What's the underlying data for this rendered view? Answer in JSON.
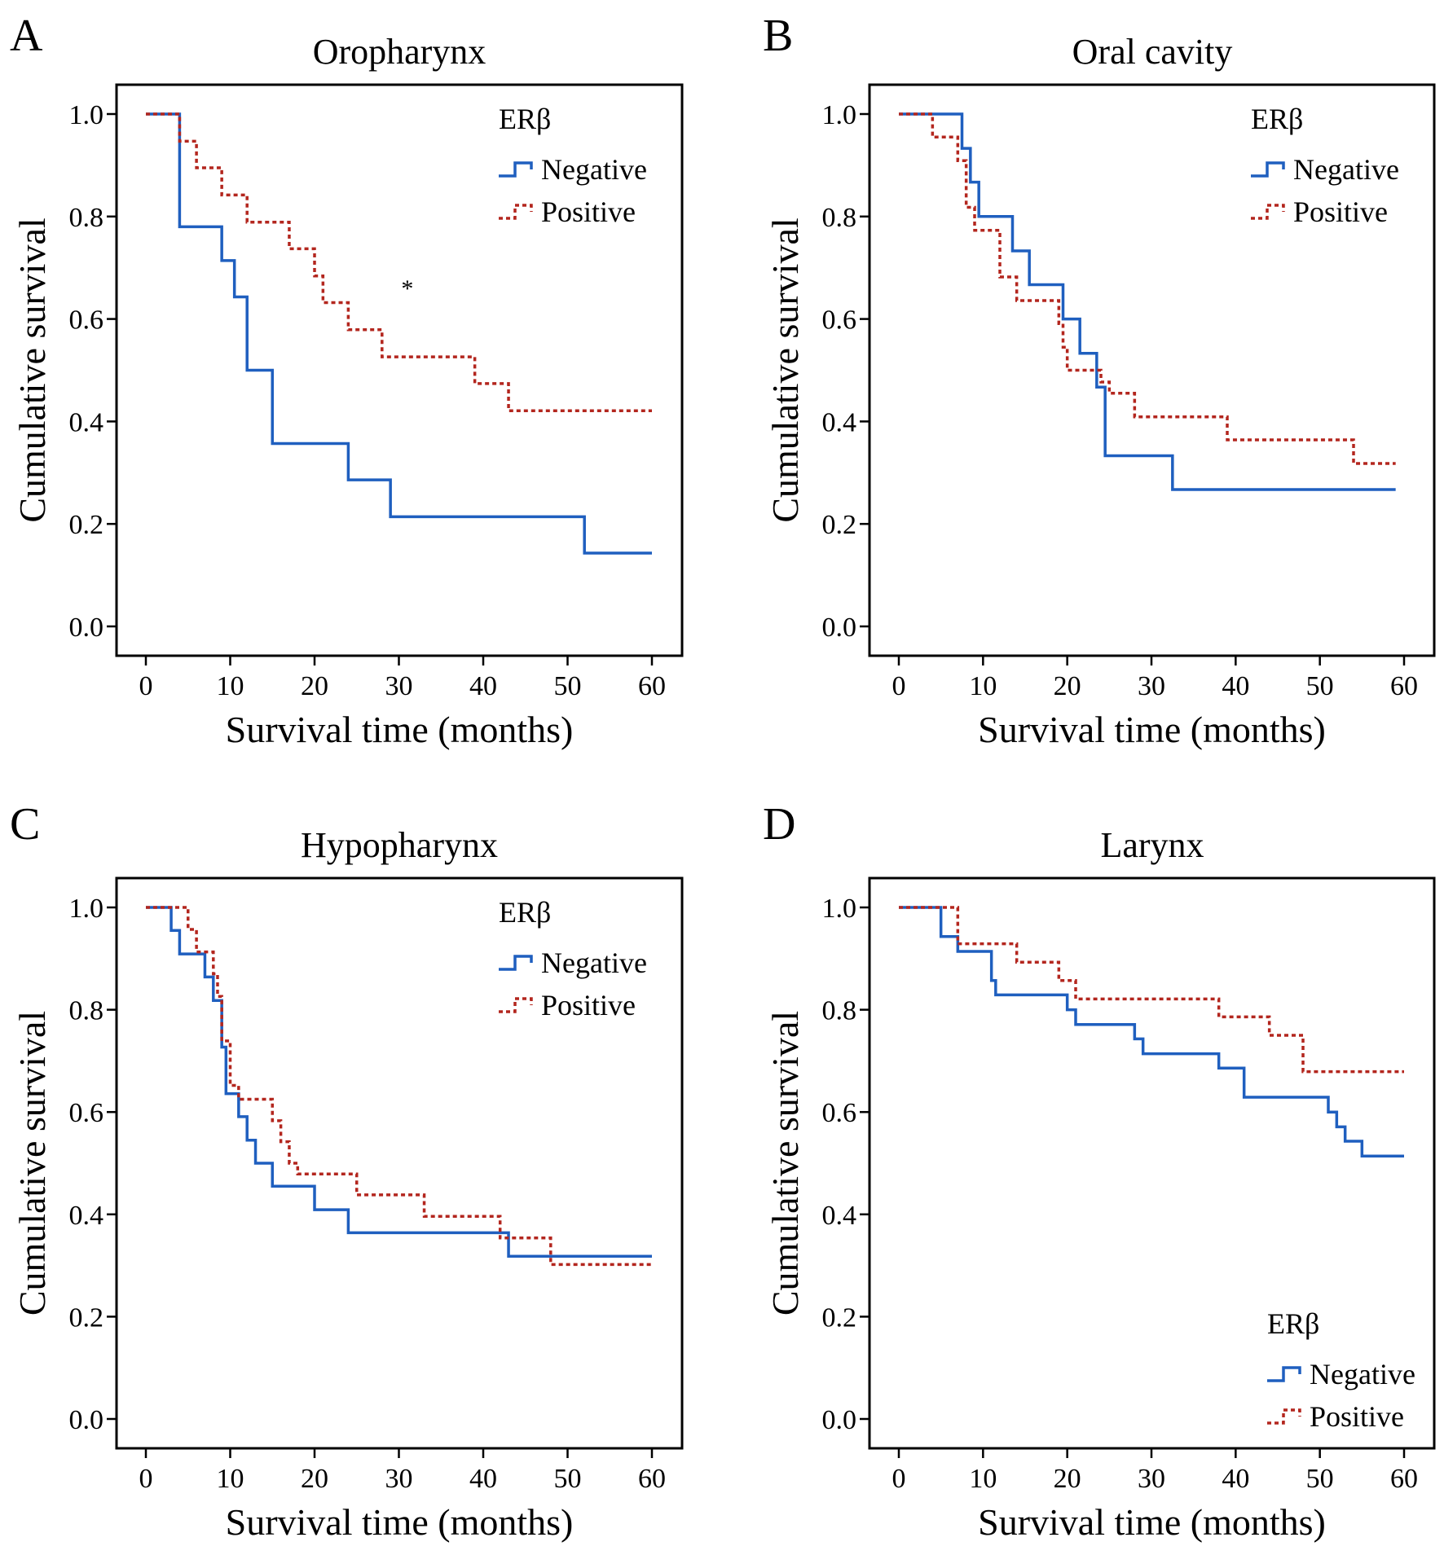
{
  "figure": {
    "colors": {
      "negative": "#1f5fbf",
      "positive": "#b3261e",
      "axis": "#000000"
    }
  },
  "chart_data": [
    {
      "panel": "A",
      "title": "Oropharynx",
      "type": "line",
      "xlabel": "Survival time (months)",
      "ylabel": "Cumulative survival",
      "xlim": [
        0,
        60
      ],
      "ylim": [
        0,
        1
      ],
      "xticks": [
        "0",
        "10",
        "20",
        "30",
        "40",
        "50",
        "60"
      ],
      "yticks": [
        "0.0",
        "0.2",
        "0.4",
        "0.6",
        "0.8",
        "1.0"
      ],
      "legend": {
        "title": "ERβ",
        "position": "top-right"
      },
      "annotation": "*",
      "annotation_at": [
        31,
        0.66
      ],
      "series": [
        {
          "name": "Negative",
          "style": "solid",
          "x": [
            0,
            4,
            9,
            10.5,
            12,
            15,
            24,
            29,
            52,
            60
          ],
          "y": [
            1.0,
            0.78,
            0.714,
            0.643,
            0.5,
            0.357,
            0.286,
            0.214,
            0.143,
            0.143
          ]
        },
        {
          "name": "Positive",
          "style": "dotted",
          "x": [
            0,
            4,
            6,
            9,
            12,
            17,
            20,
            21,
            24,
            28,
            39,
            43,
            60
          ],
          "y": [
            1.0,
            0.947,
            0.895,
            0.842,
            0.789,
            0.737,
            0.684,
            0.632,
            0.579,
            0.526,
            0.474,
            0.421,
            0.421
          ]
        }
      ]
    },
    {
      "panel": "B",
      "title": "Oral cavity",
      "type": "line",
      "xlabel": "Survival time (months)",
      "ylabel": "Cumulative survival",
      "xlim": [
        0,
        60
      ],
      "ylim": [
        0,
        1
      ],
      "xticks": [
        "0",
        "10",
        "20",
        "30",
        "40",
        "50",
        "60"
      ],
      "yticks": [
        "0.0",
        "0.2",
        "0.4",
        "0.6",
        "0.8",
        "1.0"
      ],
      "legend": {
        "title": "ERβ",
        "position": "top-right"
      },
      "series": [
        {
          "name": "Negative",
          "style": "solid",
          "x": [
            0,
            7.5,
            8.5,
            9.5,
            13.5,
            15.5,
            19.5,
            21.5,
            23.5,
            24.5,
            32.5,
            59
          ],
          "y": [
            1.0,
            0.933,
            0.867,
            0.8,
            0.733,
            0.667,
            0.6,
            0.533,
            0.467,
            0.333,
            0.267,
            0.267
          ]
        },
        {
          "name": "Positive",
          "style": "dotted",
          "x": [
            0,
            4,
            7,
            8,
            9,
            12,
            14,
            19,
            19.5,
            20,
            24,
            25,
            28,
            39,
            54,
            59
          ],
          "y": [
            1.0,
            0.955,
            0.909,
            0.818,
            0.773,
            0.682,
            0.636,
            0.591,
            0.545,
            0.5,
            0.477,
            0.455,
            0.409,
            0.364,
            0.318,
            0.318
          ]
        }
      ]
    },
    {
      "panel": "C",
      "title": "Hypopharynx",
      "type": "line",
      "xlabel": "Survival time (months)",
      "ylabel": "Cumulative survival",
      "xlim": [
        0,
        60
      ],
      "ylim": [
        0,
        1
      ],
      "xticks": [
        "0",
        "10",
        "20",
        "30",
        "40",
        "50",
        "60"
      ],
      "yticks": [
        "0.0",
        "0.2",
        "0.4",
        "0.6",
        "0.8",
        "1.0"
      ],
      "legend": {
        "title": "ERβ",
        "position": "top-right"
      },
      "series": [
        {
          "name": "Negative",
          "style": "solid",
          "x": [
            0,
            3,
            4,
            7,
            8,
            9,
            9.5,
            11,
            12,
            13,
            15,
            20,
            24,
            43,
            60
          ],
          "y": [
            1.0,
            0.955,
            0.909,
            0.864,
            0.818,
            0.727,
            0.636,
            0.591,
            0.545,
            0.5,
            0.455,
            0.409,
            0.364,
            0.318,
            0.318
          ]
        },
        {
          "name": "Positive",
          "style": "dotted",
          "x": [
            0,
            5,
            6,
            8,
            8.5,
            9,
            10,
            11,
            15,
            16,
            17,
            18,
            25,
            33,
            42,
            48,
            60
          ],
          "y": [
            1.0,
            0.957,
            0.913,
            0.87,
            0.826,
            0.739,
            0.652,
            0.625,
            0.583,
            0.542,
            0.5,
            0.479,
            0.438,
            0.396,
            0.354,
            0.302,
            0.302
          ]
        }
      ]
    },
    {
      "panel": "D",
      "title": "Larynx",
      "type": "line",
      "xlabel": "Survival time (months)",
      "ylabel": "Cumulative survival",
      "xlim": [
        0,
        60
      ],
      "ylim": [
        0,
        1
      ],
      "xticks": [
        "0",
        "10",
        "20",
        "30",
        "40",
        "50",
        "60"
      ],
      "yticks": [
        "0.0",
        "0.2",
        "0.4",
        "0.6",
        "0.8",
        "1.0"
      ],
      "legend": {
        "title": "ERβ",
        "position": "bottom-right"
      },
      "series": [
        {
          "name": "Negative",
          "style": "solid",
          "x": [
            0,
            5,
            7,
            11,
            11.5,
            12,
            20,
            21,
            28,
            29,
            38,
            41,
            51,
            52,
            53,
            55,
            60
          ],
          "y": [
            1.0,
            0.943,
            0.914,
            0.857,
            0.829,
            0.829,
            0.8,
            0.771,
            0.743,
            0.714,
            0.686,
            0.629,
            0.6,
            0.571,
            0.543,
            0.514,
            0.514
          ]
        },
        {
          "name": "Positive",
          "style": "dotted",
          "x": [
            0,
            7,
            14,
            19,
            21,
            38,
            44,
            48,
            60
          ],
          "y": [
            1.0,
            0.929,
            0.893,
            0.857,
            0.821,
            0.786,
            0.75,
            0.679,
            0.679
          ]
        }
      ]
    }
  ]
}
